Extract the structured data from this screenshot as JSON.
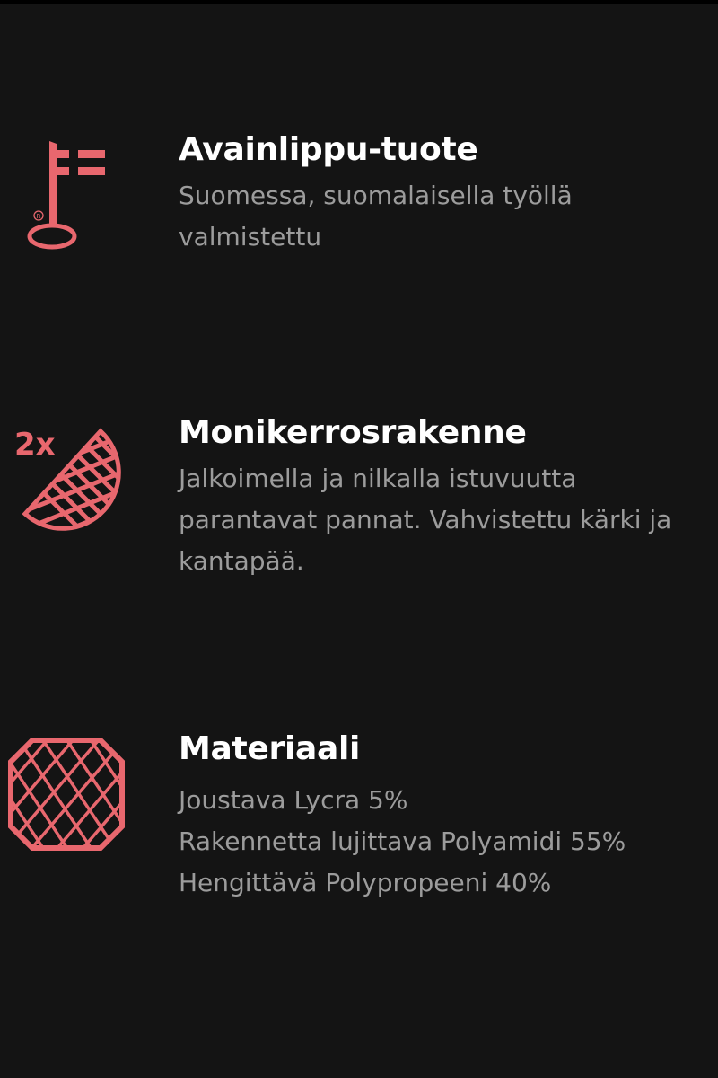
{
  "colors": {
    "background": "#141414",
    "accent": "#e8676e",
    "title": "#ffffff",
    "text": "#9c9c9c"
  },
  "features": [
    {
      "icon": "key-flag-icon",
      "title": "Avainlippu-tuote",
      "description": "Suomessa, suomalaisella työllä valmistettu"
    },
    {
      "icon": "multilayer-2x-icon",
      "icon_label": "2x",
      "title": "Monikerrosrakenne",
      "description": "Jalkoimella ja nilkalla istuvuutta parantavat pannat. Vahvistettu kärki ja kantapää."
    },
    {
      "icon": "material-mesh-icon",
      "title": "Materiaali",
      "lines": [
        "Joustava Lycra 5%",
        "Rakennetta lujittava Polyamidi 55%",
        "Hengittävä Polypropeeni 40%"
      ]
    }
  ]
}
